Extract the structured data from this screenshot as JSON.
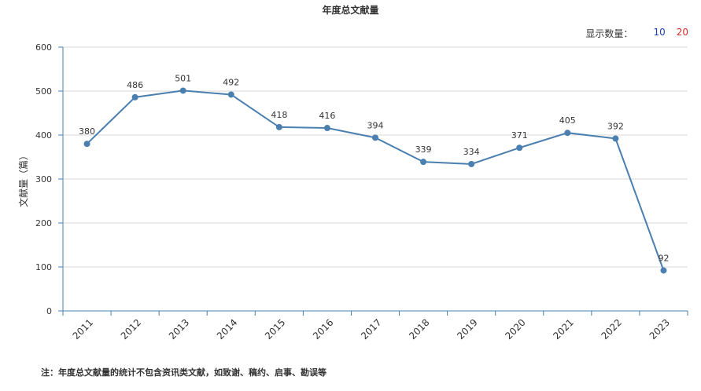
{
  "title": "年度总文献量",
  "display_count": {
    "label": "显示数量：",
    "options": [
      "10",
      "20"
    ],
    "option_colors": [
      "#1f3fb5",
      "#d42a2a"
    ]
  },
  "note": "注：年度总文献量的统计不包含资讯类文献，如致谢、稿约、启事、勘误等",
  "chart_data": {
    "type": "line",
    "title": "年度总文献量",
    "xlabel": "",
    "ylabel": "文献量（篇）",
    "categories": [
      "2011",
      "2012",
      "2013",
      "2014",
      "2015",
      "2016",
      "2017",
      "2018",
      "2019",
      "2020",
      "2021",
      "2022",
      "2023"
    ],
    "series": [
      {
        "values": [
          380,
          486,
          501,
          492,
          418,
          416,
          394,
          339,
          334,
          371,
          405,
          392,
          92
        ],
        "color": "#4a7fb0"
      }
    ],
    "ylim": [
      0,
      600
    ],
    "yticks": [
      0,
      100,
      200,
      300,
      400,
      500,
      600
    ],
    "grid": true,
    "data_labels": true,
    "legend": "none"
  }
}
